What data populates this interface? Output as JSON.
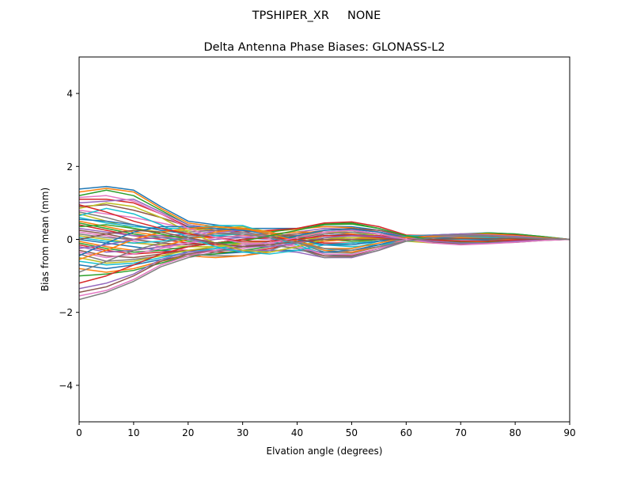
{
  "suptitle": "TPSHIPER_XR     NONE",
  "chart_data": {
    "type": "line",
    "title": "Delta Antenna Phase Biases: GLONASS-L2",
    "xlabel": "Elvation angle (degrees)",
    "ylabel": "Bias from mean (mm)",
    "xlim": [
      0,
      90
    ],
    "ylim": [
      -5,
      5
    ],
    "xticks": [
      0,
      10,
      20,
      30,
      40,
      50,
      60,
      70,
      80,
      90
    ],
    "yticks": [
      -4,
      -2,
      0,
      2,
      4
    ],
    "ytick_labels": [
      "−4",
      "−2",
      "0",
      "2",
      "4"
    ],
    "grid": false,
    "legend": "none",
    "x": [
      0,
      5,
      10,
      15,
      20,
      25,
      30,
      35,
      40,
      45,
      50,
      55,
      60,
      65,
      70,
      75,
      80,
      85,
      90
    ],
    "palette": [
      "#1f77b4",
      "#ff7f0e",
      "#2ca02c",
      "#d62728",
      "#9467bd",
      "#8c564b",
      "#e377c2",
      "#7f7f7f",
      "#bcbd22",
      "#17becf"
    ],
    "series": [
      {
        "values": [
          1.38,
          1.45,
          1.35,
          0.9,
          0.5,
          0.4,
          0.3,
          0.3,
          0.3,
          0.35,
          0.35,
          0.25,
          0.1,
          0.12,
          0.15,
          0.18,
          0.15,
          0.08,
          0
        ]
      },
      {
        "values": [
          1.3,
          1.4,
          1.3,
          0.85,
          0.45,
          0.35,
          0.28,
          0.22,
          0.28,
          0.35,
          0.32,
          0.2,
          0.05,
          0.05,
          0.08,
          0.12,
          0.1,
          0.05,
          0
        ]
      },
      {
        "values": [
          1.2,
          1.35,
          1.2,
          0.8,
          0.4,
          0.3,
          0.25,
          0.2,
          0.3,
          0.42,
          0.45,
          0.3,
          0.1,
          0.1,
          0.12,
          0.18,
          0.15,
          0.08,
          0
        ]
      },
      {
        "values": [
          1.1,
          1.1,
          1.0,
          0.7,
          0.35,
          0.25,
          0.2,
          0.25,
          0.3,
          0.45,
          0.48,
          0.35,
          0.12,
          0.1,
          0.1,
          0.15,
          0.12,
          0.05,
          0
        ]
      },
      {
        "values": [
          1.0,
          1.05,
          1.1,
          0.75,
          0.4,
          0.3,
          0.15,
          0.15,
          0.2,
          0.3,
          0.28,
          0.2,
          0.08,
          0.05,
          0.08,
          0.12,
          0.1,
          0.05,
          0
        ]
      },
      {
        "values": [
          0.9,
          0.95,
          0.8,
          0.6,
          0.35,
          0.2,
          0.1,
          0.1,
          0.15,
          0.25,
          0.3,
          0.25,
          0.1,
          0.05,
          0.05,
          0.1,
          0.1,
          0.05,
          0
        ]
      },
      {
        "values": [
          0.8,
          0.7,
          0.6,
          0.45,
          0.3,
          0.2,
          0.15,
          0.1,
          0.1,
          0.15,
          0.2,
          0.15,
          0.05,
          0.02,
          0.0,
          0.05,
          0.05,
          0.02,
          0
        ]
      },
      {
        "values": [
          0.75,
          0.6,
          0.4,
          0.25,
          0.2,
          0.25,
          0.3,
          0.2,
          0.05,
          -0.05,
          0.0,
          0.05,
          0.08,
          0.05,
          0.0,
          0.02,
          0.05,
          0.02,
          0
        ]
      },
      {
        "values": [
          0.7,
          0.5,
          0.3,
          0.2,
          0.25,
          0.3,
          0.35,
          0.2,
          0.0,
          -0.15,
          -0.1,
          0.0,
          0.1,
          0.08,
          0.0,
          -0.02,
          0.02,
          0.02,
          0
        ]
      },
      {
        "values": [
          0.6,
          0.45,
          0.35,
          0.3,
          0.3,
          0.38,
          0.38,
          0.15,
          -0.1,
          -0.3,
          -0.25,
          -0.05,
          0.1,
          0.1,
          0.05,
          0.0,
          0.0,
          0.0,
          0
        ]
      },
      {
        "values": [
          0.55,
          0.5,
          0.4,
          0.25,
          0.15,
          0.1,
          0.05,
          0.0,
          0.05,
          0.1,
          0.15,
          0.1,
          0.0,
          -0.05,
          -0.05,
          -0.02,
          0.0,
          0.0,
          0
        ]
      },
      {
        "values": [
          0.5,
          0.35,
          0.2,
          0.1,
          0.05,
          0.05,
          0.1,
          0.15,
          0.2,
          0.2,
          0.15,
          0.05,
          -0.05,
          -0.05,
          0.0,
          0.05,
          0.05,
          0.02,
          0
        ]
      },
      {
        "values": [
          0.45,
          0.3,
          0.15,
          0.05,
          -0.05,
          -0.1,
          -0.1,
          -0.05,
          0.05,
          0.15,
          0.2,
          0.15,
          0.05,
          -0.02,
          -0.05,
          -0.05,
          0.0,
          0.02,
          0
        ]
      },
      {
        "values": [
          0.4,
          0.25,
          0.1,
          0.0,
          -0.1,
          -0.15,
          -0.15,
          -0.1,
          0.0,
          0.1,
          0.12,
          0.08,
          0.0,
          -0.05,
          -0.08,
          -0.05,
          -0.02,
          0.0,
          0
        ]
      },
      {
        "values": [
          0.3,
          0.2,
          0.1,
          0.1,
          0.15,
          0.2,
          0.25,
          0.15,
          -0.05,
          -0.25,
          -0.3,
          -0.15,
          0.0,
          0.05,
          0.05,
          0.05,
          0.05,
          0.02,
          0
        ]
      },
      {
        "values": [
          0.25,
          0.15,
          0.0,
          -0.1,
          -0.15,
          -0.1,
          0.0,
          0.1,
          0.1,
          0.0,
          -0.05,
          0.0,
          0.05,
          0.05,
          0.02,
          0.0,
          0.0,
          0.0,
          0
        ]
      },
      {
        "values": [
          0.2,
          0.1,
          -0.05,
          -0.2,
          -0.3,
          -0.3,
          -0.25,
          -0.15,
          0.0,
          0.15,
          0.2,
          0.15,
          0.05,
          0.0,
          -0.02,
          0.0,
          0.02,
          0.02,
          0
        ]
      },
      {
        "values": [
          0.15,
          0.05,
          0.0,
          0.05,
          0.1,
          0.15,
          0.2,
          0.1,
          -0.1,
          -0.35,
          -0.38,
          -0.2,
          0.0,
          0.1,
          0.12,
          0.1,
          0.05,
          0.02,
          0
        ]
      },
      {
        "values": [
          0.1,
          0.0,
          -0.1,
          -0.15,
          -0.2,
          -0.2,
          -0.15,
          -0.05,
          0.1,
          0.2,
          0.2,
          0.1,
          -0.05,
          -0.1,
          -0.1,
          -0.08,
          -0.05,
          -0.02,
          0
        ]
      },
      {
        "values": [
          0.05,
          -0.05,
          -0.1,
          -0.05,
          0.05,
          0.1,
          0.15,
          0.05,
          -0.15,
          -0.4,
          -0.45,
          -0.25,
          0.0,
          0.12,
          0.15,
          0.12,
          0.08,
          0.03,
          0
        ]
      },
      {
        "values": [
          0.0,
          -0.1,
          -0.2,
          -0.3,
          -0.35,
          -0.3,
          -0.2,
          -0.05,
          0.1,
          0.25,
          0.28,
          0.2,
          0.05,
          -0.05,
          -0.1,
          -0.1,
          -0.05,
          -0.02,
          0
        ]
      },
      {
        "values": [
          -0.05,
          -0.2,
          -0.3,
          -0.2,
          0.0,
          0.2,
          0.3,
          0.2,
          -0.05,
          -0.3,
          -0.35,
          -0.2,
          0.0,
          0.1,
          0.15,
          0.15,
          0.1,
          0.05,
          0
        ]
      },
      {
        "values": [
          -0.1,
          -0.25,
          -0.35,
          -0.3,
          -0.2,
          -0.1,
          0.0,
          0.05,
          0.05,
          0.0,
          -0.05,
          0.0,
          0.05,
          0.05,
          0.02,
          0.0,
          0.0,
          0.0,
          0
        ]
      },
      {
        "values": [
          -0.15,
          -0.3,
          -0.4,
          -0.35,
          -0.3,
          -0.35,
          -0.35,
          -0.25,
          -0.1,
          0.05,
          0.1,
          0.1,
          0.05,
          0.0,
          -0.05,
          -0.05,
          -0.02,
          0.0,
          0
        ]
      },
      {
        "values": [
          -0.2,
          -0.35,
          -0.3,
          -0.2,
          -0.1,
          0.0,
          0.05,
          0.05,
          0.0,
          -0.1,
          -0.1,
          -0.05,
          0.0,
          0.05,
          0.08,
          0.05,
          0.02,
          0.0,
          0
        ]
      },
      {
        "values": [
          -0.3,
          -0.45,
          -0.5,
          -0.4,
          -0.3,
          -0.25,
          -0.2,
          -0.1,
          0.05,
          0.2,
          0.25,
          0.15,
          0.0,
          -0.08,
          -0.12,
          -0.1,
          -0.05,
          -0.02,
          0
        ]
      },
      {
        "values": [
          -0.35,
          -0.5,
          -0.4,
          -0.25,
          -0.1,
          0.05,
          0.1,
          0.0,
          -0.2,
          -0.45,
          -0.5,
          -0.3,
          -0.05,
          0.1,
          0.15,
          0.12,
          0.08,
          0.03,
          0
        ]
      },
      {
        "values": [
          -0.4,
          -0.6,
          -0.55,
          -0.45,
          -0.4,
          -0.45,
          -0.45,
          -0.3,
          -0.05,
          0.15,
          0.2,
          0.15,
          0.05,
          -0.05,
          -0.1,
          -0.1,
          -0.05,
          -0.02,
          0
        ]
      },
      {
        "values": [
          -0.5,
          -0.65,
          -0.6,
          -0.45,
          -0.3,
          -0.2,
          -0.1,
          -0.05,
          0.0,
          0.05,
          0.05,
          0.02,
          0.0,
          -0.02,
          -0.05,
          -0.05,
          -0.02,
          0.0,
          0
        ]
      },
      {
        "values": [
          -0.6,
          -0.7,
          -0.65,
          -0.5,
          -0.35,
          -0.25,
          -0.15,
          -0.1,
          -0.1,
          -0.15,
          -0.2,
          -0.15,
          -0.05,
          0.0,
          0.05,
          0.05,
          0.02,
          0.0,
          0
        ]
      },
      {
        "values": [
          -0.7,
          -0.8,
          -0.7,
          -0.55,
          -0.45,
          -0.4,
          -0.35,
          -0.3,
          -0.3,
          -0.35,
          -0.3,
          -0.15,
          0.05,
          0.1,
          0.1,
          0.08,
          0.05,
          0.02,
          0
        ]
      },
      {
        "values": [
          -0.8,
          -0.9,
          -0.8,
          -0.6,
          -0.45,
          -0.5,
          -0.45,
          -0.35,
          -0.2,
          -0.05,
          0.0,
          0.05,
          0.05,
          0.0,
          -0.05,
          -0.05,
          -0.02,
          0.0,
          0
        ]
      },
      {
        "values": [
          -1.0,
          -0.95,
          -0.85,
          -0.65,
          -0.45,
          -0.4,
          -0.3,
          -0.2,
          -0.1,
          0.0,
          0.05,
          0.05,
          0.0,
          -0.05,
          -0.1,
          -0.08,
          -0.05,
          -0.02,
          0
        ]
      },
      {
        "values": [
          -1.2,
          -1.0,
          -0.7,
          -0.4,
          -0.2,
          -0.1,
          0.0,
          0.05,
          0.0,
          -0.1,
          -0.1,
          -0.05,
          0.05,
          0.1,
          0.1,
          0.08,
          0.05,
          0.02,
          0
        ]
      },
      {
        "values": [
          -1.35,
          -1.2,
          -0.95,
          -0.55,
          -0.35,
          -0.3,
          -0.3,
          -0.3,
          -0.35,
          -0.5,
          -0.5,
          -0.3,
          0.0,
          0.12,
          0.15,
          0.12,
          0.08,
          0.03,
          0
        ]
      },
      {
        "values": [
          -1.45,
          -1.3,
          -1.0,
          -0.6,
          -0.4,
          -0.3,
          -0.2,
          -0.15,
          -0.25,
          -0.45,
          -0.45,
          -0.25,
          0.0,
          0.1,
          0.12,
          0.1,
          0.05,
          0.02,
          0
        ]
      },
      {
        "values": [
          -1.55,
          -1.4,
          -1.1,
          -0.7,
          -0.45,
          -0.3,
          -0.15,
          -0.1,
          -0.2,
          -0.4,
          -0.42,
          -0.25,
          0.0,
          0.08,
          0.1,
          0.1,
          0.05,
          0.02,
          0
        ]
      },
      {
        "values": [
          -1.65,
          -1.45,
          -1.15,
          -0.75,
          -0.5,
          -0.35,
          -0.2,
          -0.15,
          -0.25,
          -0.5,
          -0.48,
          -0.3,
          -0.05,
          0.1,
          0.12,
          0.1,
          0.05,
          0.02,
          0
        ]
      },
      {
        "values": [
          0.85,
          1.0,
          0.9,
          0.6,
          0.2,
          -0.1,
          -0.3,
          -0.35,
          -0.2,
          0.0,
          0.05,
          0.05,
          0.0,
          -0.05,
          -0.08,
          -0.05,
          -0.02,
          0.0,
          0
        ]
      },
      {
        "values": [
          0.65,
          0.85,
          0.7,
          0.4,
          0.05,
          -0.2,
          -0.35,
          -0.4,
          -0.3,
          -0.15,
          -0.1,
          -0.05,
          0.0,
          0.0,
          0.0,
          0.0,
          0.0,
          0.0,
          0
        ]
      },
      {
        "values": [
          -0.45,
          -0.1,
          0.2,
          0.35,
          0.35,
          0.3,
          0.25,
          0.15,
          0.0,
          -0.15,
          -0.15,
          -0.05,
          0.05,
          0.05,
          0.02,
          0.0,
          0.0,
          0.0,
          0
        ]
      },
      {
        "values": [
          -0.55,
          -0.3,
          0.0,
          0.2,
          0.3,
          0.35,
          0.3,
          0.15,
          -0.05,
          -0.25,
          -0.25,
          -0.1,
          0.05,
          0.08,
          0.05,
          0.02,
          0.0,
          0.0,
          0
        ]
      },
      {
        "values": [
          0.35,
          0.4,
          0.3,
          0.15,
          0.0,
          -0.1,
          -0.05,
          0.1,
          0.25,
          0.4,
          0.42,
          0.3,
          0.1,
          0.0,
          -0.08,
          -0.1,
          -0.08,
          -0.03,
          0
        ]
      },
      {
        "values": [
          0.95,
          0.75,
          0.5,
          0.3,
          0.15,
          0.05,
          -0.05,
          -0.05,
          0.0,
          0.1,
          0.1,
          0.05,
          0.0,
          -0.02,
          -0.05,
          -0.05,
          -0.02,
          0.0,
          0
        ]
      },
      {
        "values": [
          -0.25,
          -0.15,
          0.0,
          0.05,
          0.0,
          -0.1,
          -0.2,
          -0.2,
          -0.1,
          0.05,
          0.1,
          0.08,
          0.0,
          -0.05,
          -0.1,
          -0.1,
          -0.05,
          -0.02,
          0
        ]
      },
      {
        "values": [
          0.0,
          0.15,
          0.25,
          0.2,
          0.05,
          -0.1,
          -0.2,
          -0.15,
          -0.05,
          0.0,
          0.0,
          0.0,
          0.0,
          0.0,
          0.02,
          0.02,
          0.02,
          0.0,
          0
        ]
      },
      {
        "values": [
          1.15,
          1.2,
          1.05,
          0.7,
          0.3,
          0.05,
          -0.1,
          -0.1,
          0.05,
          0.2,
          0.25,
          0.15,
          0.0,
          -0.1,
          -0.15,
          -0.12,
          -0.08,
          -0.03,
          0
        ]
      },
      {
        "values": [
          -0.9,
          -0.6,
          -0.3,
          -0.1,
          0.05,
          0.15,
          0.15,
          0.05,
          -0.1,
          -0.25,
          -0.3,
          -0.2,
          -0.05,
          0.05,
          0.08,
          0.08,
          0.05,
          0.02,
          0
        ]
      }
    ]
  }
}
